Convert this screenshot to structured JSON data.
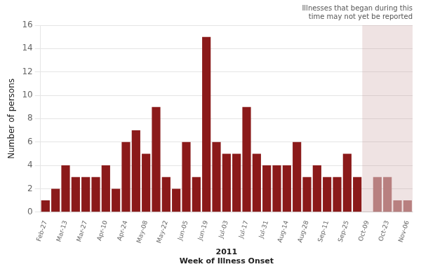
{
  "chart_data": {
    "type": "bar",
    "categories": [
      "Feb-27",
      null,
      "Mar-13",
      null,
      "Mar-27",
      null,
      "Apr-10",
      null,
      "Apr-24",
      null,
      "May-08",
      null,
      "May-22",
      null,
      "Jun-05",
      null,
      "Jun-19",
      null,
      "Jul-03",
      null,
      "Jul-17",
      null,
      "Jul-31",
      null,
      "Aug-14",
      null,
      "Aug-28",
      null,
      "Sep-11",
      null,
      "Sep-25",
      null,
      "Oct-09",
      null,
      "Oct-23",
      null,
      "Nov-06"
    ],
    "values": [
      1,
      2,
      4,
      3,
      3,
      3,
      4,
      2,
      6,
      7,
      5,
      9,
      3,
      2,
      6,
      3,
      15,
      6,
      5,
      5,
      9,
      5,
      4,
      4,
      4,
      6,
      3,
      4,
      3,
      3,
      5,
      3,
      0,
      3,
      3,
      1,
      1
    ],
    "colors": [
      "#8B1A1A",
      "#8B1A1A",
      "#8B1A1A",
      "#8B1A1A",
      "#8B1A1A",
      "#8B1A1A",
      "#8B1A1A",
      "#8B1A1A",
      "#8B1A1A",
      "#8B1A1A",
      "#8B1A1A",
      "#8B1A1A",
      "#8B1A1A",
      "#8B1A1A",
      "#8B1A1A",
      "#8B1A1A",
      "#8B1A1A",
      "#8B1A1A",
      "#8B1A1A",
      "#8B1A1A",
      "#8B1A1A",
      "#8B1A1A",
      "#8B1A1A",
      "#8B1A1A",
      "#8B1A1A",
      "#8B1A1A",
      "#8B1A1A",
      "#8B1A1A",
      "#8B1A1A",
      "#8B1A1A",
      "#8B1A1A",
      "#8B1A1A",
      "#b88080",
      "#b88080",
      "#b88080",
      "#b88080",
      "#b88080"
    ],
    "ylabel": "Number of persons",
    "xlabel": [
      "2011",
      "Week of Illness Onset"
    ],
    "annotation": "Illnesses that began during this\ntime may not yet be reported",
    "ylim": [
      0,
      16
    ],
    "yticks": [
      0,
      2,
      4,
      6,
      8,
      10,
      12,
      14,
      16
    ],
    "grid": true
  }
}
